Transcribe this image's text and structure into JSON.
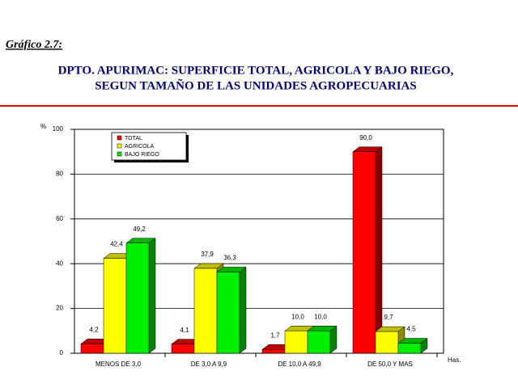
{
  "header": "Gráfico 2.7:",
  "chart_data": {
    "type": "bar3d",
    "title": [
      "DPTO. APURIMAC: SUPERFICIE TOTAL, AGRICOLA Y BAJO RIEGO,",
      "SEGUN TAMAÑO DE LAS UNIDADES AGROPECUARIAS"
    ],
    "ylabel": "%",
    "xlabel": "Has.",
    "categories": [
      "MENOS DE 3,0",
      "DE 3,0 A 9,9",
      "DE 10,0 A 49,9",
      "DE 50,0 Y MAS"
    ],
    "series": [
      {
        "name": "TOTAL",
        "color": "#ff0000",
        "values": [
          4.2,
          4.1,
          1.7,
          90.0
        ],
        "value_labels": [
          "4,2",
          "4,1",
          "1,7",
          "90,0"
        ]
      },
      {
        "name": "AGRICOLA",
        "color": "#ffff00",
        "values": [
          42.4,
          37.9,
          10.0,
          9.7
        ],
        "value_labels": [
          "42,4",
          "37,9",
          "10,0",
          "9,7"
        ]
      },
      {
        "name": "BAJO RIEGO",
        "color": "#00ee00",
        "values": [
          49.2,
          36.3,
          10.0,
          4.5
        ],
        "value_labels": [
          "49,2",
          "36,3",
          "10,0",
          "4,5"
        ]
      }
    ],
    "ylim": [
      0,
      100
    ],
    "yticks": [
      0,
      20,
      40,
      60,
      80,
      100
    ],
    "grid": true,
    "legend": "top-left"
  }
}
